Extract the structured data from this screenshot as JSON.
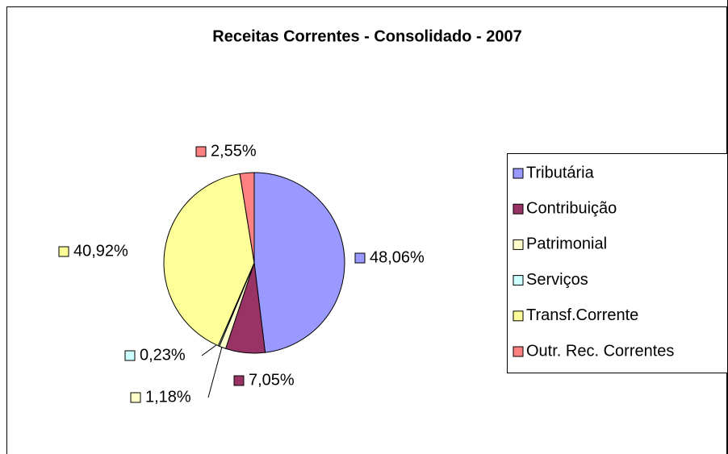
{
  "chart_data": {
    "type": "pie",
    "title": "Receitas Correntes - Consolidado - 2007",
    "categories": [
      "Tributária",
      "Contribuição",
      "Patrimonial",
      "Serviços",
      "Transf.Corrente",
      "Outr. Rec. Correntes"
    ],
    "values": [
      48.06,
      7.05,
      1.18,
      0.23,
      40.92,
      2.55
    ],
    "value_labels": [
      "48,06%",
      "7,05%",
      "1,18%",
      "0,23%",
      "40,92%",
      "2,55%"
    ],
    "colors": [
      "#9999ff",
      "#993366",
      "#ffffcc",
      "#ccffff",
      "#ffff99",
      "#ff8080"
    ],
    "legend": "right"
  }
}
